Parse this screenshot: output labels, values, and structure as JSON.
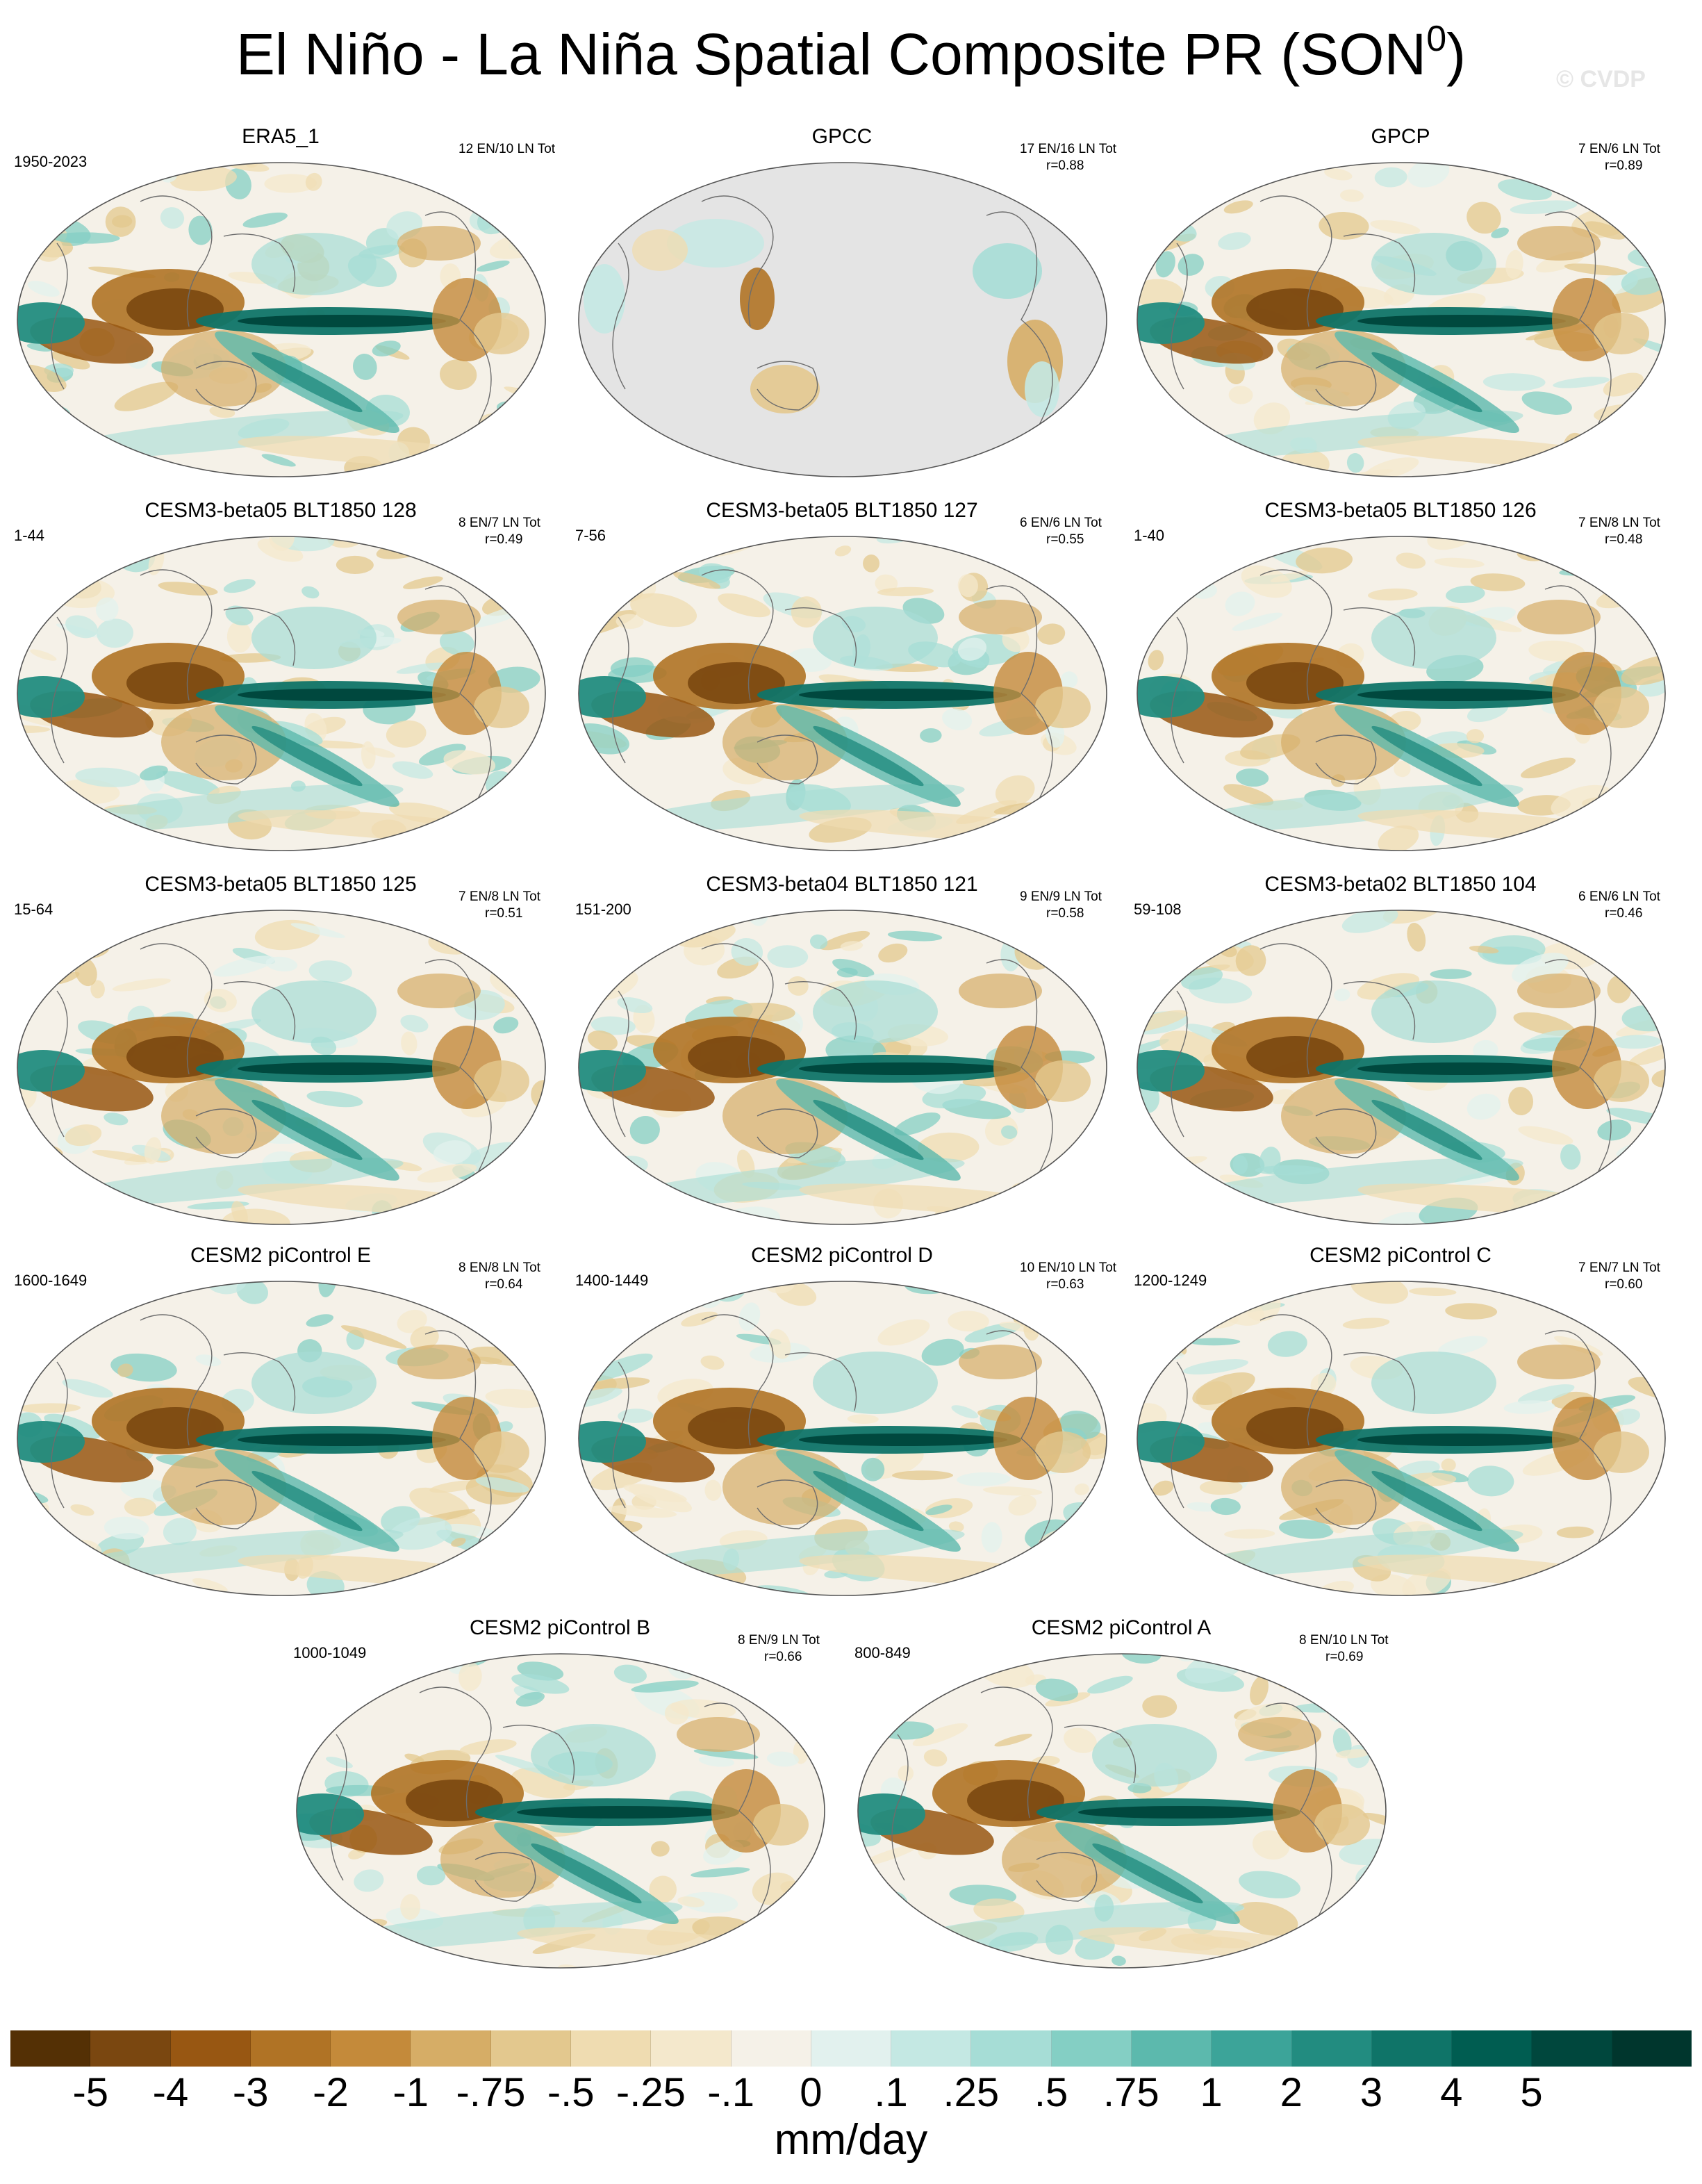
{
  "title_main": "El Niño - La Niña Spatial Composite PR (SON",
  "title_sup": "0",
  "title_close": ")",
  "watermark": "© CVDP",
  "panels": [
    {
      "title": "ERA5_1",
      "range": "1950-2023",
      "stat1": "12 EN/10 LN Tot",
      "stat2": ""
    },
    {
      "title": "GPCC",
      "range": "",
      "stat1": "17 EN/16 LN Tot",
      "stat2": "r=0.88"
    },
    {
      "title": "GPCP",
      "range": "",
      "stat1": "7 EN/6 LN Tot",
      "stat2": "r=0.89"
    },
    {
      "title": "CESM3-beta05 BLT1850 128",
      "range": "1-44",
      "stat1": "8 EN/7 LN Tot",
      "stat2": "r=0.49"
    },
    {
      "title": "CESM3-beta05 BLT1850 127",
      "range": "7-56",
      "stat1": "6 EN/6 LN Tot",
      "stat2": "r=0.55"
    },
    {
      "title": "CESM3-beta05 BLT1850 126",
      "range": "1-40",
      "stat1": "7 EN/8 LN Tot",
      "stat2": "r=0.48"
    },
    {
      "title": "CESM3-beta05 BLT1850 125",
      "range": "15-64",
      "stat1": "7 EN/8 LN Tot",
      "stat2": "r=0.51"
    },
    {
      "title": "CESM3-beta04 BLT1850 121",
      "range": "151-200",
      "stat1": "9 EN/9 LN Tot",
      "stat2": "r=0.58"
    },
    {
      "title": "CESM3-beta02 BLT1850 104",
      "range": "59-108",
      "stat1": "6 EN/6 LN Tot",
      "stat2": "r=0.46"
    },
    {
      "title": "CESM2 piControl E",
      "range": "1600-1649",
      "stat1": "8 EN/8 LN Tot",
      "stat2": "r=0.64"
    },
    {
      "title": "CESM2 piControl D",
      "range": "1400-1449",
      "stat1": "10 EN/10 LN Tot",
      "stat2": "r=0.63"
    },
    {
      "title": "CESM2 piControl C",
      "range": "1200-1249",
      "stat1": "7 EN/7 LN Tot",
      "stat2": "r=0.60"
    },
    {
      "title": "CESM2 piControl B",
      "range": "1000-1049",
      "stat1": "8 EN/9 LN Tot",
      "stat2": "r=0.66"
    },
    {
      "title": "CESM2 piControl A",
      "range": "800-849",
      "stat1": "8 EN/10 LN Tot",
      "stat2": "r=0.69"
    }
  ],
  "colorbar": {
    "colors": [
      "#543005",
      "#7a4710",
      "#985712",
      "#b07325",
      "#c48a3a",
      "#d6ad66",
      "#e3c88e",
      "#efdcb1",
      "#f4e8cc",
      "#f5f1e8",
      "#e2f1ee",
      "#c4e8e3",
      "#a6ddd6",
      "#84cfc4",
      "#5cb9ad",
      "#3ca499",
      "#228c80",
      "#0f7468",
      "#005d51",
      "#00473d",
      "#00362d"
    ],
    "ticks": [
      "-5",
      "-4",
      "-3",
      "-2",
      "-1",
      "-.75",
      "-.5",
      "-.25",
      "-.1",
      "0",
      ".1",
      ".25",
      ".5",
      ".75",
      "1",
      "2",
      "3",
      "4",
      "5"
    ],
    "units": "mm/day"
  },
  "chart_data": {
    "type": "heatmap",
    "title": "El Niño - La Niña Spatial Composite PR (SON0)",
    "units": "mm/day",
    "levels": [
      -5,
      -4,
      -3,
      -2,
      -1,
      -0.75,
      -0.5,
      -0.25,
      -0.1,
      0,
      0.1,
      0.25,
      0.5,
      0.75,
      1,
      2,
      3,
      4,
      5
    ],
    "panels": [
      {
        "name": "ERA5_1",
        "years": "1950-2023",
        "events": "12 EN/10 LN Tot"
      },
      {
        "name": "GPCC",
        "events": "17 EN/16 LN Tot",
        "r": 0.88
      },
      {
        "name": "GPCP",
        "events": "7 EN/6 LN Tot",
        "r": 0.89
      },
      {
        "name": "CESM3-beta05 BLT1850 128",
        "years": "1-44",
        "events": "8 EN/7 LN Tot",
        "r": 0.49
      },
      {
        "name": "CESM3-beta05 BLT1850 127",
        "years": "7-56",
        "events": "6 EN/6 LN Tot",
        "r": 0.55
      },
      {
        "name": "CESM3-beta05 BLT1850 126",
        "years": "1-40",
        "events": "7 EN/8 LN Tot",
        "r": 0.48
      },
      {
        "name": "CESM3-beta05 BLT1850 125",
        "years": "15-64",
        "events": "7 EN/8 LN Tot",
        "r": 0.51
      },
      {
        "name": "CESM3-beta04 BLT1850 121",
        "years": "151-200",
        "events": "9 EN/9 LN Tot",
        "r": 0.58
      },
      {
        "name": "CESM3-beta02 BLT1850 104",
        "years": "59-108",
        "events": "6 EN/6 LN Tot",
        "r": 0.46
      },
      {
        "name": "CESM2 piControl E",
        "years": "1600-1649",
        "events": "8 EN/8 LN Tot",
        "r": 0.64
      },
      {
        "name": "CESM2 piControl D",
        "years": "1400-1449",
        "events": "10 EN/10 LN Tot",
        "r": 0.63
      },
      {
        "name": "CESM2 piControl C",
        "years": "1200-1249",
        "events": "7 EN/7 LN Tot",
        "r": 0.6
      },
      {
        "name": "CESM2 piControl B",
        "years": "1000-1049",
        "events": "8 EN/9 LN Tot",
        "r": 0.66
      },
      {
        "name": "CESM2 piControl A",
        "years": "800-849",
        "events": "8 EN/10 LN Tot",
        "r": 0.69
      }
    ]
  }
}
